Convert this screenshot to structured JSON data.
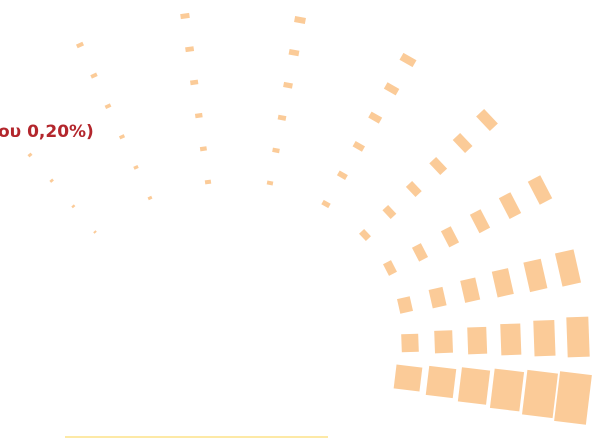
{
  "caption": {
    "text": "ου 0,20%)"
  }
}
